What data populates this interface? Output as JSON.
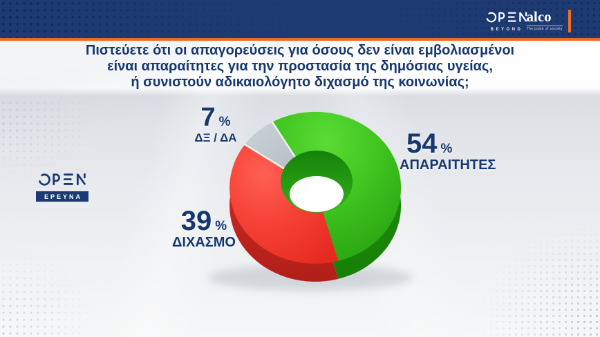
{
  "header": {
    "open_logo": "OPEN",
    "open_tagline": "BEYOND",
    "alco_logo": "alco",
    "alco_tagline": "The pulse of society"
  },
  "title": {
    "line1": "Πιστεύετε ότι οι απαγορεύσεις για όσους δεν είναι εμβολιασμένοι",
    "line2": "είναι απαραίτητες για την προστασία της δημόσιας υγείας,",
    "line3": "ή συνιστούν αδικαιολόγητο διχασμό της κοινωνίας;"
  },
  "brand": {
    "logo": "OPEN",
    "label": "ΕΡΕΥΝΑ"
  },
  "chart_data": {
    "type": "pie",
    "style": "3d-donut",
    "title": "Πιστεύετε ότι οι απαγορεύσεις για όσους δεν είναι εμβολιασμένοι είναι απαραίτητες για την προστασία της δημόσιας υγείας, ή συνιστούν αδικαιολόγητο διχασμό της κοινωνίας;",
    "categories": [
      "ΑΠΑΡΑΙΤΗΤΕΣ",
      "ΔΙΧΑΣΜΟ",
      "ΔΞ / ΔΑ"
    ],
    "values": [
      54,
      39,
      7
    ],
    "unit": "%",
    "colors": [
      "#35b31a",
      "#ef372c",
      "#b9c1c7"
    ],
    "start_angle_deg": -30,
    "direction": "clockwise",
    "legend_position": "labels-around-slices"
  },
  "labels": [
    {
      "value": "54",
      "unit": "%",
      "text": "ΑΠΑΡΑΙΤΗΤΕΣ"
    },
    {
      "value": "39",
      "unit": "%",
      "text": "ΔΙΧΑΣΜΟ"
    },
    {
      "value": "7",
      "unit": "%",
      "text": "ΔΞ / ΔΑ"
    }
  ]
}
